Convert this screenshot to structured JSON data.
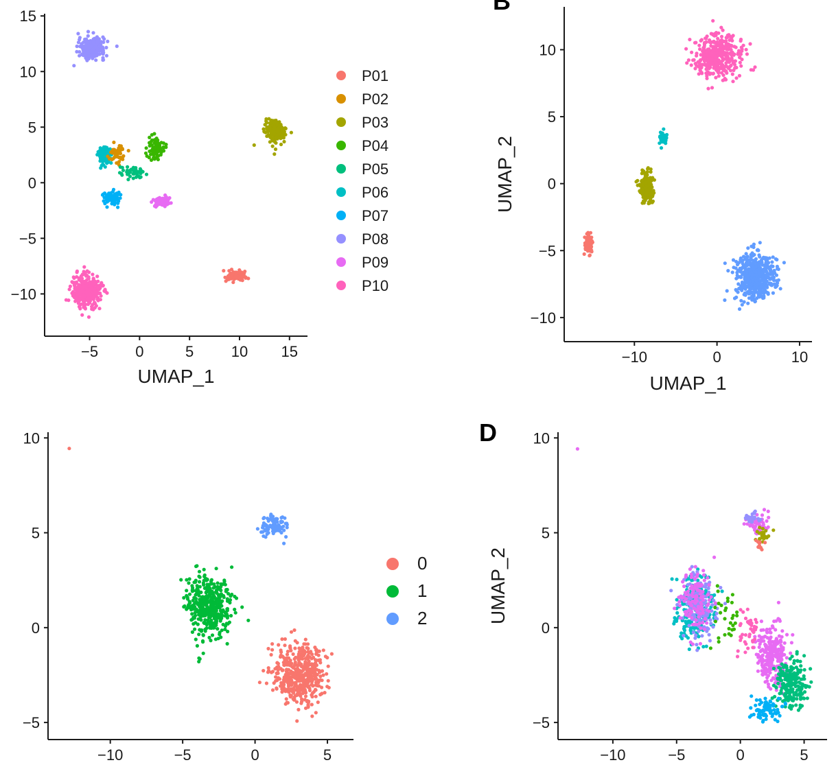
{
  "chart_data": [
    {
      "id": "A",
      "type": "scatter",
      "panel_label": "",
      "xlabel": "UMAP_1",
      "ylabel": "",
      "xlim": [
        -9.5,
        16.8
      ],
      "ylim": [
        -13.8,
        15.2
      ],
      "xticks": [
        -5,
        0,
        5,
        10,
        15
      ],
      "xtick_labels": [
        "−5",
        "0",
        "5",
        "10",
        "15"
      ],
      "yticks": [
        -10,
        -5,
        0,
        5,
        10,
        15
      ],
      "ytick_labels": [
        "−10",
        "−5",
        "0",
        "5",
        "10",
        "15"
      ],
      "legend_position": "right",
      "legend": [
        {
          "label": "P01",
          "color": "#F8766D"
        },
        {
          "label": "P02",
          "color": "#D89000"
        },
        {
          "label": "P03",
          "color": "#A3A500"
        },
        {
          "label": "P04",
          "color": "#39B600"
        },
        {
          "label": "P05",
          "color": "#00BF7D"
        },
        {
          "label": "P06",
          "color": "#00BFC4"
        },
        {
          "label": "P07",
          "color": "#00B0F6"
        },
        {
          "label": "P08",
          "color": "#9590FF"
        },
        {
          "label": "P09",
          "color": "#E76BF3"
        },
        {
          "label": "P10",
          "color": "#FF62BC"
        }
      ],
      "clusters": [
        {
          "color": "#9590FF",
          "x": -4.8,
          "y": 12.1,
          "sx": 1.3,
          "sy": 0.9,
          "n": 260
        },
        {
          "color": "#A3A500",
          "x": 13.6,
          "y": 4.6,
          "sx": 1.0,
          "sy": 1.0,
          "n": 200
        },
        {
          "color": "#00BFC4",
          "x": -3.5,
          "y": 2.5,
          "sx": 0.6,
          "sy": 0.9,
          "n": 120
        },
        {
          "color": "#D89000",
          "x": -2.2,
          "y": 2.5,
          "sx": 0.8,
          "sy": 0.8,
          "n": 50
        },
        {
          "color": "#39B600",
          "x": 1.6,
          "y": 3.2,
          "sx": 0.8,
          "sy": 1.0,
          "n": 90
        },
        {
          "color": "#00BF7D",
          "x": -0.8,
          "y": 0.9,
          "sx": 1.2,
          "sy": 0.6,
          "n": 40
        },
        {
          "color": "#00B0F6",
          "x": -2.8,
          "y": -1.4,
          "sx": 0.8,
          "sy": 0.6,
          "n": 80
        },
        {
          "color": "#E76BF3",
          "x": 2.2,
          "y": -1.7,
          "sx": 0.9,
          "sy": 0.4,
          "n": 90
        },
        {
          "color": "#F8766D",
          "x": 9.6,
          "y": -8.4,
          "sx": 1.2,
          "sy": 0.4,
          "n": 90
        },
        {
          "color": "#FF62BC",
          "x": -5.3,
          "y": -9.7,
          "sx": 1.4,
          "sy": 1.5,
          "n": 340
        }
      ]
    },
    {
      "id": "B",
      "type": "scatter",
      "panel_label": "B",
      "xlabel": "UMAP_1",
      "ylabel": "UMAP_2",
      "xlim": [
        -18.5,
        11.5
      ],
      "ylim": [
        -11.8,
        13.2
      ],
      "xticks": [
        -10,
        0,
        10
      ],
      "xtick_labels": [
        "−10",
        "0",
        "10"
      ],
      "yticks": [
        -10,
        -5,
        0,
        5,
        10
      ],
      "ytick_labels": [
        "−10",
        "−5",
        "0",
        "5",
        "10"
      ],
      "legend": [],
      "clusters": [
        {
          "color": "#FF62BC",
          "x": 0.2,
          "y": 9.5,
          "sx": 3.0,
          "sy": 1.6,
          "n": 380
        },
        {
          "color": "#00BFC4",
          "x": -6.5,
          "y": 3.4,
          "sx": 0.5,
          "sy": 0.6,
          "n": 30
        },
        {
          "color": "#A3A500",
          "x": -8.5,
          "y": -0.3,
          "sx": 0.8,
          "sy": 1.1,
          "n": 170
        },
        {
          "color": "#F8766D",
          "x": -15.5,
          "y": -4.5,
          "sx": 0.5,
          "sy": 0.8,
          "n": 70
        },
        {
          "color": "#619CFF",
          "x": 4.5,
          "y": -7.0,
          "sx": 2.4,
          "sy": 1.8,
          "n": 480
        }
      ]
    },
    {
      "id": "C",
      "type": "scatter",
      "panel_label": "",
      "xlabel": "",
      "ylabel": "",
      "xlim": [
        -14.3,
        6.8
      ],
      "ylim": [
        -5.9,
        10.3
      ],
      "xticks": [
        -10,
        -5,
        0,
        5
      ],
      "xtick_labels": [
        "−10",
        "−5",
        "0",
        "5"
      ],
      "yticks": [
        -5,
        0,
        5,
        10
      ],
      "ytick_labels": [
        "−5",
        "0",
        "5",
        "10"
      ],
      "legend_position": "right",
      "legend": [
        {
          "label": "0",
          "color": "#F8766D"
        },
        {
          "label": "1",
          "color": "#00BA38"
        },
        {
          "label": "2",
          "color": "#619CFF"
        }
      ],
      "clusters": [
        {
          "color": "#F8766D",
          "x": 3.0,
          "y": -2.5,
          "sx": 1.7,
          "sy": 1.6,
          "n": 480
        },
        {
          "color": "#00BA38",
          "x": -3.2,
          "y": 1.2,
          "sx": 1.6,
          "sy": 1.7,
          "n": 400
        },
        {
          "color": "#619CFF",
          "x": 1.2,
          "y": 5.4,
          "sx": 0.9,
          "sy": 0.5,
          "n": 90
        },
        {
          "color": "#F8766D",
          "x": -12.8,
          "y": 9.4,
          "sx": 0.05,
          "sy": 0.05,
          "n": 1
        }
      ]
    },
    {
      "id": "D",
      "type": "scatter",
      "panel_label": "D",
      "xlabel": "",
      "ylabel": "UMAP_2",
      "xlim": [
        -14.3,
        6.8
      ],
      "ylim": [
        -5.9,
        10.3
      ],
      "xticks": [
        -10,
        -5,
        0,
        5
      ],
      "xtick_labels": [
        "−10",
        "−5",
        "0",
        "5"
      ],
      "yticks": [
        -5,
        0,
        5,
        10
      ],
      "ytick_labels": [
        "−5",
        "0",
        "5",
        "10"
      ],
      "legend": [],
      "clusters": [
        {
          "color": "#00BFC4",
          "x": -3.5,
          "y": 1.0,
          "sx": 1.4,
          "sy": 1.6,
          "n": 250
        },
        {
          "color": "#9590FF",
          "x": -3.2,
          "y": 1.0,
          "sx": 1.4,
          "sy": 1.6,
          "n": 150
        },
        {
          "color": "#E76BF3",
          "x": -3.5,
          "y": 1.5,
          "sx": 1.3,
          "sy": 1.5,
          "n": 120
        },
        {
          "color": "#E76BF3",
          "x": 2.5,
          "y": -1.5,
          "sx": 1.2,
          "sy": 1.8,
          "n": 250
        },
        {
          "color": "#00BF7D",
          "x": 4.0,
          "y": -3.0,
          "sx": 1.2,
          "sy": 1.3,
          "n": 220
        },
        {
          "color": "#00B0F6",
          "x": 2.0,
          "y": -4.3,
          "sx": 1.2,
          "sy": 0.5,
          "n": 80
        },
        {
          "color": "#E76BF3",
          "x": 1.4,
          "y": 5.4,
          "sx": 0.8,
          "sy": 0.5,
          "n": 50
        },
        {
          "color": "#A3A500",
          "x": 1.8,
          "y": 4.9,
          "sx": 0.6,
          "sy": 0.4,
          "n": 25
        },
        {
          "color": "#F8766D",
          "x": 1.5,
          "y": 4.4,
          "sx": 0.3,
          "sy": 0.3,
          "n": 12
        },
        {
          "color": "#9590FF",
          "x": 0.9,
          "y": 5.8,
          "sx": 0.6,
          "sy": 0.3,
          "n": 25
        },
        {
          "color": "#39B600",
          "x": -1.0,
          "y": 0.8,
          "sx": 1.2,
          "sy": 1.6,
          "n": 30
        },
        {
          "color": "#FF62BC",
          "x": 0.6,
          "y": 0.0,
          "sx": 1.0,
          "sy": 1.4,
          "n": 40
        },
        {
          "color": "#E76BF3",
          "x": -12.8,
          "y": 9.4,
          "sx": 0.05,
          "sy": 0.05,
          "n": 1
        }
      ]
    }
  ]
}
